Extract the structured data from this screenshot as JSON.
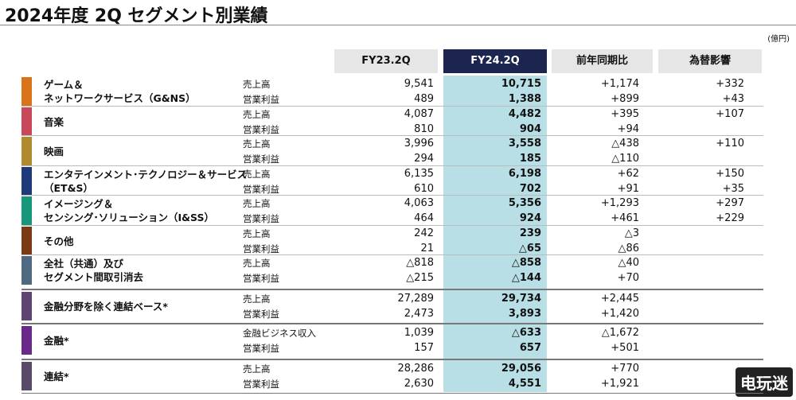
{
  "header": {
    "title": "2024年度 2Q セグメント別業績",
    "unit": "(億円)"
  },
  "table": {
    "columns": [
      "FY23.2Q",
      "FY24.2Q",
      "前年同期比",
      "為替影響"
    ],
    "segments": [
      {
        "name": [
          "ゲーム＆",
          "ネットワークサービス（G&NS）"
        ],
        "color": "#d9731a",
        "rows": [
          [
            "売上高",
            "9,541",
            "10,715",
            "+1,174",
            "+332"
          ],
          [
            "営業利益",
            "489",
            "1,388",
            "+899",
            "+43"
          ]
        ]
      },
      {
        "name": [
          "音楽"
        ],
        "color": "#c8485a",
        "rows": [
          [
            "売上高",
            "4,087",
            "4,482",
            "+395",
            "+107"
          ],
          [
            "営業利益",
            "810",
            "904",
            "+94",
            ""
          ]
        ]
      },
      {
        "name": [
          "映画"
        ],
        "color": "#b08a2e",
        "rows": [
          [
            "売上高",
            "3,996",
            "3,558",
            "△438",
            "+110"
          ],
          [
            "営業利益",
            "294",
            "185",
            "△110",
            ""
          ]
        ]
      },
      {
        "name": [
          "エンタテインメント･テクノロジー＆サービス",
          "（ET&S）"
        ],
        "color": "#1f3a7a",
        "rows": [
          [
            "売上高",
            "6,135",
            "6,198",
            "+62",
            "+150"
          ],
          [
            "営業利益",
            "610",
            "702",
            "+91",
            "+35"
          ]
        ]
      },
      {
        "name": [
          "イメージング＆",
          "センシング･ソリューション（I&SS）"
        ],
        "color": "#17977a",
        "rows": [
          [
            "売上高",
            "4,063",
            "5,356",
            "+1,293",
            "+297"
          ],
          [
            "営業利益",
            "464",
            "924",
            "+461",
            "+229"
          ]
        ]
      },
      {
        "name": [
          "その他"
        ],
        "color": "#7a3a12",
        "rows": [
          [
            "売上高",
            "242",
            "239",
            "△3",
            ""
          ],
          [
            "営業利益",
            "21",
            "△65",
            "△86",
            ""
          ]
        ]
      },
      {
        "name": [
          "全社（共通）及び",
          "セグメント間取引消去"
        ],
        "color": "#4f6a80",
        "rows": [
          [
            "売上高",
            "△818",
            "△858",
            "△40",
            ""
          ],
          [
            "営業利益",
            "△215",
            "△144",
            "+70",
            ""
          ]
        ]
      },
      {
        "name": [
          "金融分野を除く連結ベース*"
        ],
        "color": "#5e4470",
        "rows": [
          [
            "売上高",
            "27,289",
            "29,734",
            "+2,445",
            ""
          ],
          [
            "営業利益",
            "2,473",
            "3,893",
            "+1,420",
            ""
          ]
        ]
      },
      {
        "name": [
          "金融*"
        ],
        "color": "#6a2a8a",
        "rows": [
          [
            "金融ビジネス収入",
            "1,039",
            "△633",
            "△1,672",
            ""
          ],
          [
            "営業利益",
            "157",
            "657",
            "+501",
            ""
          ]
        ]
      },
      {
        "name": [
          "連結*"
        ],
        "color": "#5a4a6a",
        "rows": [
          [
            "売上高",
            "28,286",
            "29,056",
            "+770",
            ""
          ],
          [
            "営業利益",
            "2,630",
            "4,551",
            "+1,921",
            ""
          ]
        ]
      }
    ]
  },
  "watermark": "电玩迷"
}
